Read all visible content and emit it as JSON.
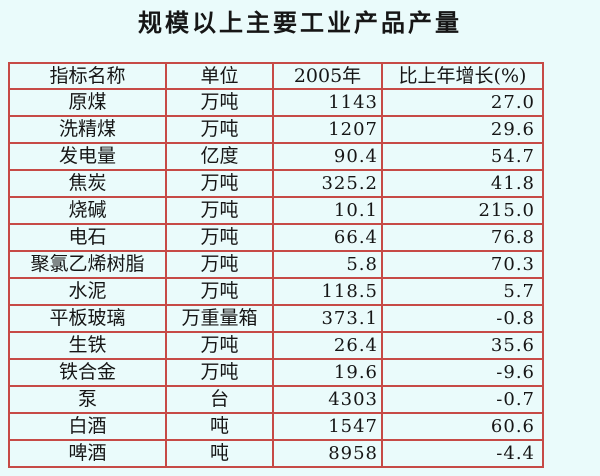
{
  "page": {
    "background": "#eafbfb",
    "title": "规模以上主要工业产品产量"
  },
  "table": {
    "border_color": "#c64a46",
    "headers": [
      "指标名称",
      "单位",
      "2005年",
      "比上年增长(%)"
    ],
    "rows": [
      {
        "name": "原煤",
        "unit": "万吨",
        "value": "1143",
        "growth": "27.0"
      },
      {
        "name": "洗精煤",
        "unit": "万吨",
        "value": "1207",
        "growth": "29.6"
      },
      {
        "name": "发电量",
        "unit": "亿度",
        "value": "90.4",
        "growth": "54.7"
      },
      {
        "name": "焦炭",
        "unit": "万吨",
        "value": "325.2",
        "growth": "41.8"
      },
      {
        "name": "烧碱",
        "unit": "万吨",
        "value": "10.1",
        "growth": "215.0"
      },
      {
        "name": "电石",
        "unit": "万吨",
        "value": "66.4",
        "growth": "76.8"
      },
      {
        "name": "聚氯乙烯树脂",
        "unit": "万吨",
        "value": "5.8",
        "growth": "70.3"
      },
      {
        "name": "水泥",
        "unit": "万吨",
        "value": "118.5",
        "growth": "5.7"
      },
      {
        "name": "平板玻璃",
        "unit": "万重量箱",
        "value": "373.1",
        "growth": "-0.8"
      },
      {
        "name": "生铁",
        "unit": "万吨",
        "value": "26.4",
        "growth": "35.6"
      },
      {
        "name": "铁合金",
        "unit": "万吨",
        "value": "19.6",
        "growth": "-9.6"
      },
      {
        "name": "泵",
        "unit": "台",
        "value": "4303",
        "growth": "-0.7"
      },
      {
        "name": "白酒",
        "unit": "吨",
        "value": "1547",
        "growth": "60.6"
      },
      {
        "name": "啤酒",
        "unit": "吨",
        "value": "8958",
        "growth": "-4.4"
      }
    ]
  },
  "chart_data": {
    "type": "table",
    "title": "规模以上主要工业产品产量",
    "columns": [
      "指标名称",
      "单位",
      "2005年",
      "比上年增长(%)"
    ],
    "rows": [
      [
        "原煤",
        "万吨",
        1143,
        27.0
      ],
      [
        "洗精煤",
        "万吨",
        1207,
        29.6
      ],
      [
        "发电量",
        "亿度",
        90.4,
        54.7
      ],
      [
        "焦炭",
        "万吨",
        325.2,
        41.8
      ],
      [
        "烧碱",
        "万吨",
        10.1,
        215.0
      ],
      [
        "电石",
        "万吨",
        66.4,
        76.8
      ],
      [
        "聚氯乙烯树脂",
        "万吨",
        5.8,
        70.3
      ],
      [
        "水泥",
        "万吨",
        118.5,
        5.7
      ],
      [
        "平板玻璃",
        "万重量箱",
        373.1,
        -0.8
      ],
      [
        "生铁",
        "万吨",
        26.4,
        35.6
      ],
      [
        "铁合金",
        "万吨",
        19.6,
        -9.6
      ],
      [
        "泵",
        "台",
        4303,
        -0.7
      ],
      [
        "白酒",
        "吨",
        1547,
        60.6
      ],
      [
        "啤酒",
        "吨",
        8958,
        -4.4
      ]
    ]
  }
}
